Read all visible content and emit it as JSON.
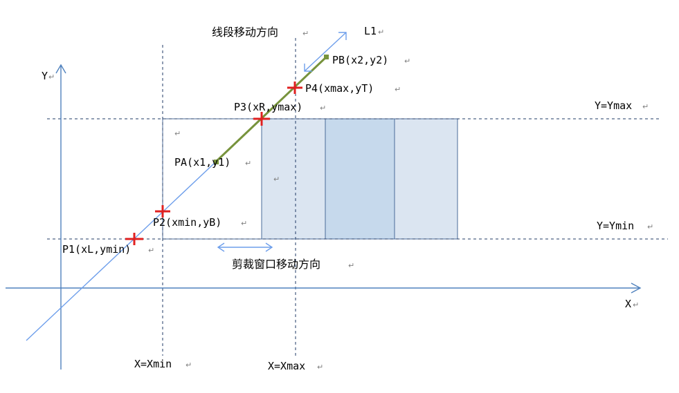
{
  "colors": {
    "axis": "#4f81bd",
    "guide": "#1f3864",
    "line_l1": "#6d9eeb",
    "segment": "#77933c",
    "cross": "#e02020",
    "fill_light": "#dbe5f1",
    "fill_mid": "#c6d9ec",
    "rect_border": "#4a6a99"
  },
  "labels": {
    "segment_direction": "线段移动方向",
    "line_name": "L1",
    "pb": "PB(x2,y2)",
    "p4": "P4(xmax,yT)",
    "p3": "P3(xR,ymax)",
    "pa": "PA(x1,y1)",
    "p2": "P2(xmin,yB)",
    "p1": "P1(xL,ymin)",
    "window_direction": "剪裁窗口移动方向",
    "y_axis": "Y",
    "x_axis": "X",
    "y_max": "Y=Ymax",
    "y_min": "Y=Ymin",
    "x_min": "X=Xmin",
    "x_max": "X=Xmax"
  },
  "icons": {
    "paragraph_mark": "↵",
    "arrow": "arrow-icon",
    "cross": "cross-marker-icon"
  }
}
